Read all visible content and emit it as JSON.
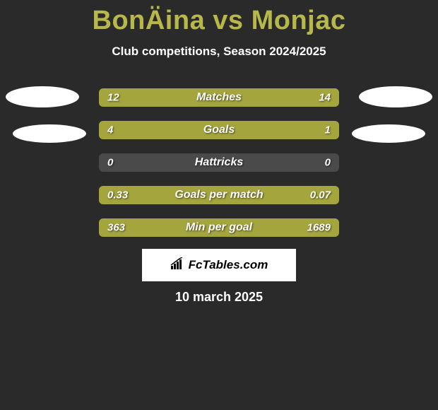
{
  "title": "BonÄina vs Monjac",
  "subtitle": "Club competitions, Season 2024/2025",
  "date": "10 march 2025",
  "logo": "FcTables.com",
  "colors": {
    "left_bar": "#a5a53e",
    "right_bar": "#a5a53e",
    "neutral_bar": "#4a4a4a",
    "background": "#2a2a2a",
    "title": "#b8b84a"
  },
  "bars": [
    {
      "label": "Matches",
      "left_value": "12",
      "right_value": "14",
      "left_pct": 46,
      "right_pct": 54,
      "left_color": "#a5a53e",
      "right_color": "#a5a53e"
    },
    {
      "label": "Goals",
      "left_value": "4",
      "right_value": "1",
      "left_pct": 80,
      "right_pct": 20,
      "left_color": "#a5a53e",
      "right_color": "#a5a53e"
    },
    {
      "label": "Hattricks",
      "left_value": "0",
      "right_value": "0",
      "left_pct": 0,
      "right_pct": 0,
      "left_color": "#a5a53e",
      "right_color": "#a5a53e"
    },
    {
      "label": "Goals per match",
      "left_value": "0.33",
      "right_value": "0.07",
      "left_pct": 82,
      "right_pct": 18,
      "left_color": "#a5a53e",
      "right_color": "#a5a53e"
    },
    {
      "label": "Min per goal",
      "left_value": "363",
      "right_value": "1689",
      "left_pct": 18,
      "right_pct": 82,
      "left_color": "#a5a53e",
      "right_color": "#a5a53e"
    }
  ]
}
